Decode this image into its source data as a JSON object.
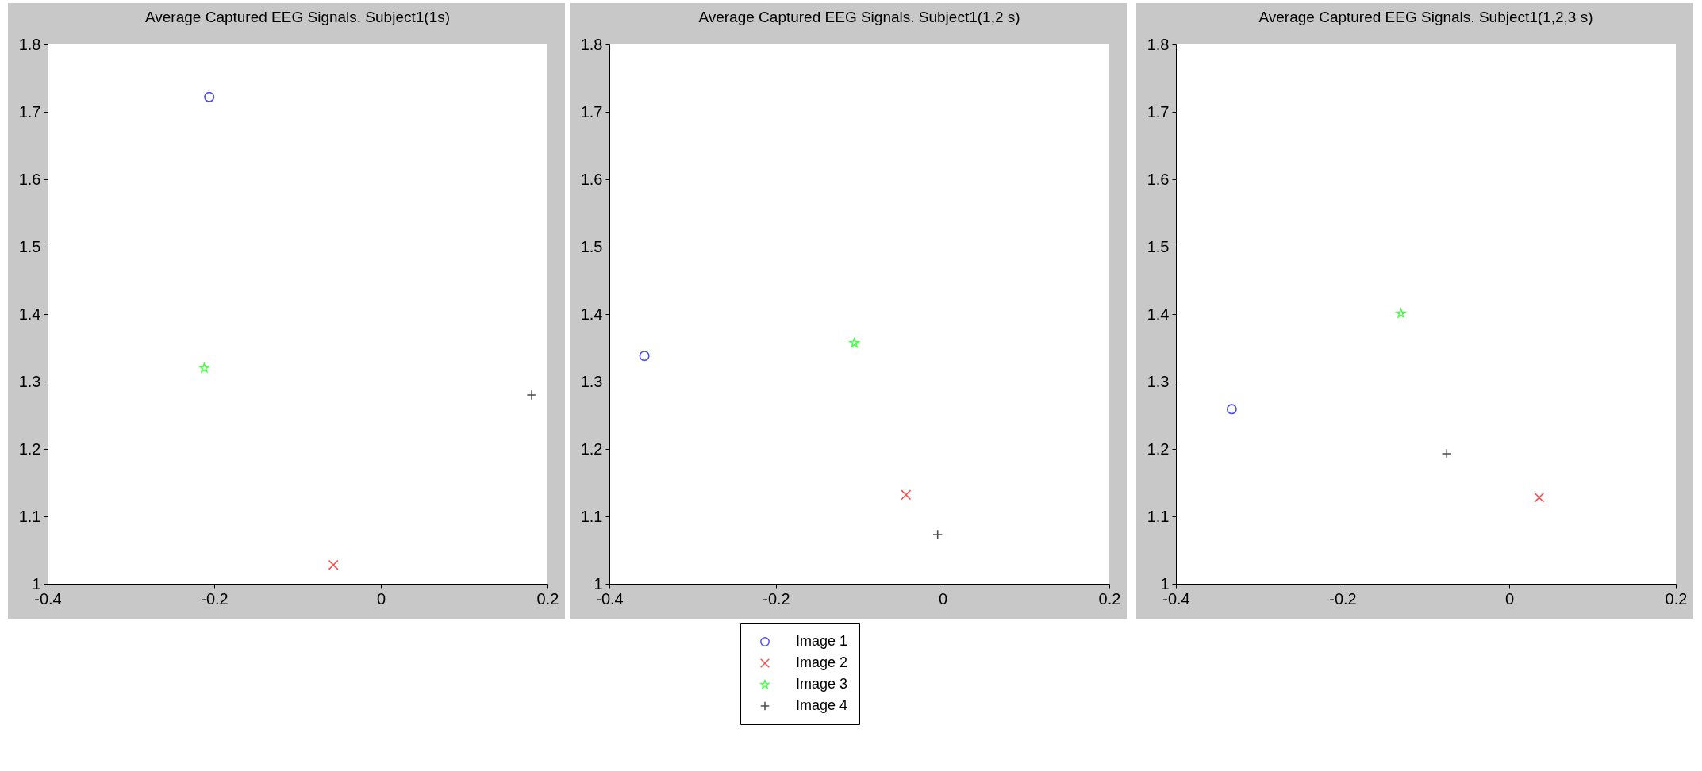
{
  "chart_data": [
    {
      "type": "scatter",
      "title": "Average Captured EEG Signals. Subject1(1s)",
      "xlim": [
        -0.4,
        0.2
      ],
      "xticks": [
        -0.4,
        -0.2,
        0,
        0.2
      ],
      "ylim": [
        1,
        1.8
      ],
      "yticks": [
        1,
        1.1,
        1.2,
        1.3,
        1.4,
        1.5,
        1.6,
        1.7,
        1.8
      ],
      "grid": false,
      "legend": false,
      "series": [
        {
          "color": "#0000ff",
          "marker": "circle",
          "x": [
            -0.206
          ],
          "values": [
            1.722
          ]
        },
        {
          "color": "#ff0000",
          "marker": "x",
          "x": [
            -0.057
          ],
          "values": [
            1.028
          ]
        },
        {
          "color": "#00ff00",
          "marker": "star",
          "x": [
            -0.212
          ],
          "values": [
            1.32
          ]
        },
        {
          "color": "#000000",
          "marker": "cross",
          "x": [
            0.181
          ],
          "values": [
            1.28
          ]
        }
      ]
    },
    {
      "type": "scatter",
      "title": "Average Captured EEG Signals. Subject1(1,2 s)",
      "xlim": [
        -0.4,
        0.2
      ],
      "xticks": [
        -0.4,
        -0.2,
        0,
        0.2
      ],
      "ylim": [
        1,
        1.8
      ],
      "yticks": [
        1,
        1.1,
        1.2,
        1.3,
        1.4,
        1.5,
        1.6,
        1.7,
        1.8
      ],
      "grid": false,
      "legend": "bottom",
      "series": [
        {
          "name": "Image 1",
          "color": "#0000ff",
          "marker": "circle",
          "x": [
            -0.358
          ],
          "values": [
            1.338
          ]
        },
        {
          "name": "Image 2",
          "color": "#ff0000",
          "marker": "x",
          "x": [
            -0.044
          ],
          "values": [
            1.132
          ]
        },
        {
          "name": "Image 3",
          "color": "#00ff00",
          "marker": "star",
          "x": [
            -0.106
          ],
          "values": [
            1.357
          ]
        },
        {
          "name": "Image 4",
          "color": "#000000",
          "marker": "cross",
          "x": [
            -0.006
          ],
          "values": [
            1.073
          ]
        }
      ]
    },
    {
      "type": "scatter",
      "title": "Average Captured EEG Signals. Subject1(1,2,3 s)",
      "xlim": [
        -0.4,
        0.2
      ],
      "xticks": [
        -0.4,
        -0.2,
        0,
        0.2
      ],
      "ylim": [
        1,
        1.8
      ],
      "yticks": [
        1,
        1.1,
        1.2,
        1.3,
        1.4,
        1.5,
        1.6,
        1.7,
        1.8
      ],
      "grid": false,
      "legend": false,
      "series": [
        {
          "color": "#0000ff",
          "marker": "circle",
          "x": [
            -0.333
          ],
          "values": [
            1.259
          ]
        },
        {
          "color": "#ff0000",
          "marker": "x",
          "x": [
            0.036
          ],
          "values": [
            1.128
          ]
        },
        {
          "color": "#00ff00",
          "marker": "star",
          "x": [
            -0.13
          ],
          "values": [
            1.401
          ]
        },
        {
          "color": "#000000",
          "marker": "cross",
          "x": [
            -0.075
          ],
          "values": [
            1.193
          ]
        }
      ]
    }
  ]
}
